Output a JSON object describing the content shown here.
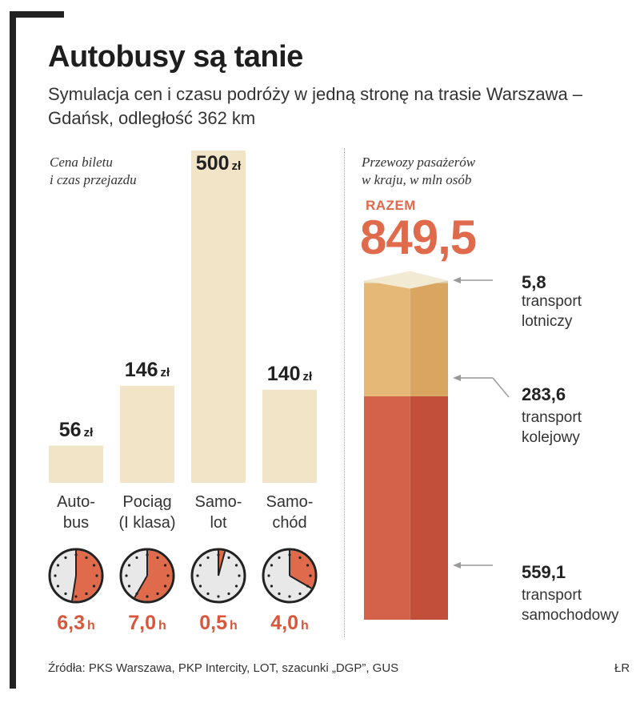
{
  "header": {
    "title": "Autobusy są tanie",
    "subtitle": "Symulacja cen i czasu podróży w jedną stronę na trasie Warszawa – Gdańsk, odległość 362 km"
  },
  "chart_data": [
    {
      "type": "bar",
      "title": "Cena biletu i czas przejazdu",
      "label_lines": [
        "Cena biletu",
        "i czas przejazdu"
      ],
      "categories": [
        "Autobus",
        "Pociąg (I klasa)",
        "Samolot",
        "Samochód"
      ],
      "category_labels": [
        "Auto-\nbus",
        "Pociąg\n(I klasa)",
        "Samo-\nlot",
        "Samo-\nchód"
      ],
      "values": [
        56,
        146,
        500,
        140
      ],
      "value_labels": [
        "56",
        "146",
        "500",
        "140"
      ],
      "value_unit": "zł",
      "ylim": [
        0,
        500
      ],
      "travel_time_hours": [
        6.3,
        7.0,
        0.5,
        4.0
      ],
      "travel_time_labels": [
        "6,3",
        "7,0",
        "0,5",
        "4,0"
      ],
      "time_unit": "h"
    },
    {
      "type": "bar",
      "stacked": true,
      "title": "Przewozy pasażerów w kraju, w mln osób",
      "label_lines": [
        "Przewozy pasażerów",
        "w kraju, w mln osób"
      ],
      "total_label": "RAZEM",
      "total_value": 849.5,
      "total_display": "849,5",
      "series": [
        {
          "name": "transport samochodowy",
          "value": 559.1,
          "display": "559,1",
          "desc": "transport\nsamochodowy"
        },
        {
          "name": "transport kolejowy",
          "value": 283.6,
          "display": "283,6",
          "desc": "transport\nkolejowy"
        },
        {
          "name": "transport lotniczy",
          "value": 5.8,
          "display": "5,8",
          "desc": "transport\nlotniczy"
        }
      ]
    }
  ],
  "colors": {
    "bar_beige": "#f2e4c6",
    "clock_fill": "#e06a4c",
    "clock_face": "#e8e8e8",
    "road": "#d4614a",
    "rail": "#e6b877",
    "air": "#ece2c8",
    "accent_text": "#d9563b"
  },
  "footer": {
    "sources": "Źródła: PKS Warszawa, PKP Intercity, LOT, szacunki „DGP”, GUS",
    "credit": "ŁR"
  }
}
